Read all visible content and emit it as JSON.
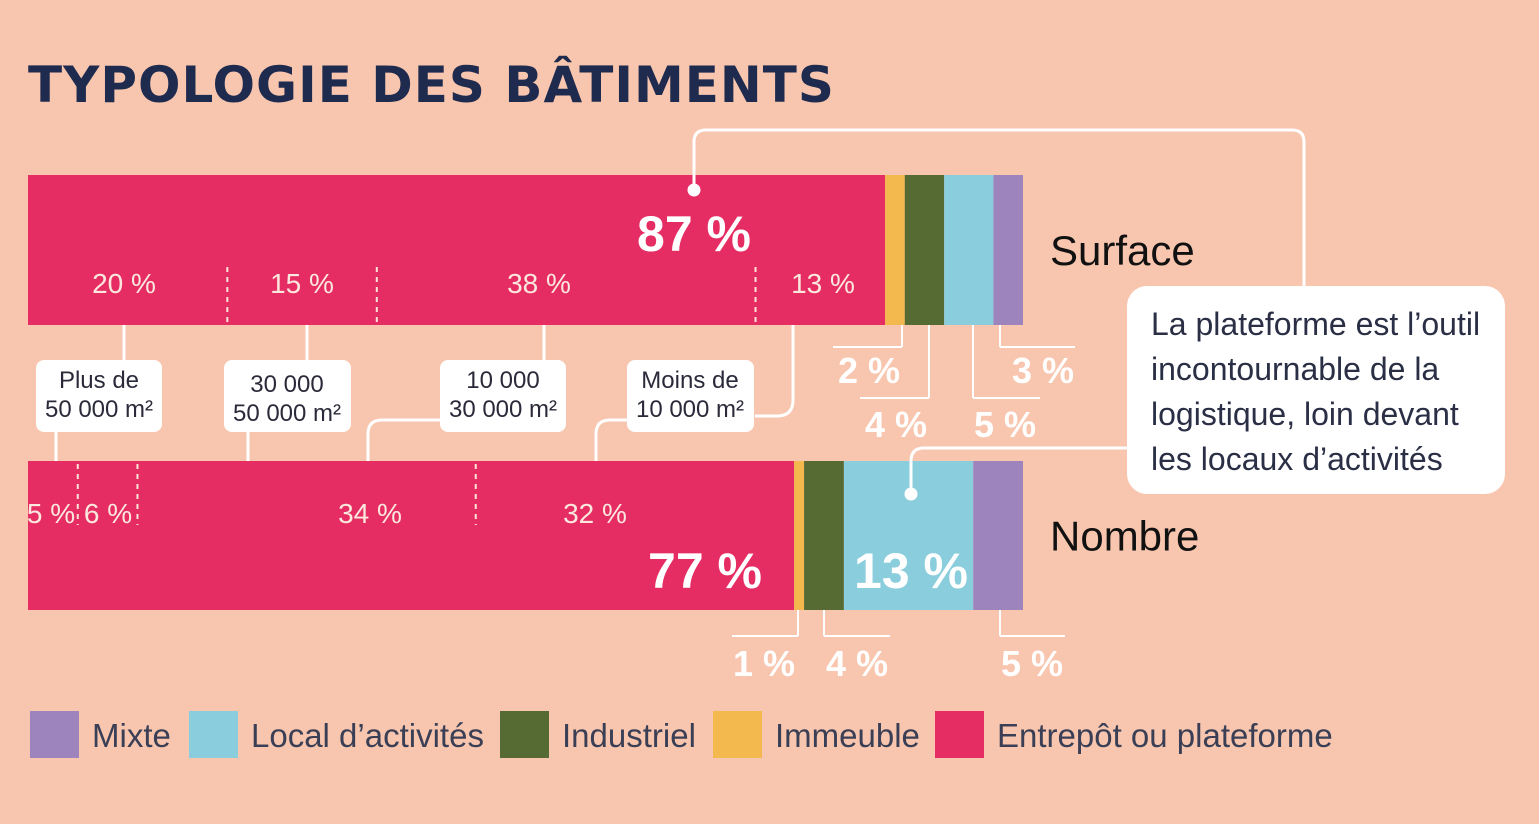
{
  "title": "TYPOLOGIE DES BÂTIMENTS",
  "colors": {
    "entrepot": "#e52d64",
    "immeuble": "#f3b84e",
    "industriel": "#566a33",
    "local": "#8acddd",
    "mixte": "#9d84bd",
    "background": "#f8c6ae"
  },
  "chart_data": {
    "type": "bar",
    "orientation": "horizontal-stacked",
    "title": "TYPOLOGIE DES BÂTIMENTS",
    "categories": [
      "Surface",
      "Nombre"
    ],
    "series": [
      {
        "name": "Entrepôt ou plateforme",
        "values": [
          87,
          77
        ],
        "labels": [
          "87 %",
          "77 %"
        ]
      },
      {
        "name": "Immeuble",
        "values": [
          2,
          1
        ],
        "labels": [
          "2 %",
          "1 %"
        ]
      },
      {
        "name": "Industriel",
        "values": [
          4,
          4
        ],
        "labels": [
          "4 %",
          "4 %"
        ]
      },
      {
        "name": "Local d’activités",
        "values": [
          5,
          13
        ],
        "labels": [
          "5 %",
          "13 %"
        ]
      },
      {
        "name": "Mixte",
        "values": [
          3,
          5
        ],
        "labels": [
          "3 %",
          "5 %"
        ]
      }
    ],
    "size_classes": {
      "names": [
        "Plus de 50 000 m²",
        "30 000 50 000 m²",
        "10 000 30 000 m²",
        "Moins de 10 000 m²"
      ],
      "box_lines": [
        [
          "Plus de",
          "50 000 m²"
        ],
        [
          "30 000",
          "50 000 m²"
        ],
        [
          "10 000",
          "30 000 m²"
        ],
        [
          "Moins de",
          "10 000 m²"
        ]
      ],
      "Surface": {
        "values": [
          20,
          15,
          38,
          13
        ],
        "labels": [
          "20 %",
          "15 %",
          "38 %",
          "13 %"
        ]
      },
      "Nombre": {
        "values": [
          5,
          6,
          34,
          32
        ],
        "labels": [
          "5 %",
          "6 %",
          "34 %",
          "32 %"
        ]
      }
    },
    "legend": [
      "Mixte",
      "Local d’activités",
      "Industriel",
      "Immeuble",
      "Entrepôt ou plateforme"
    ],
    "legend_position": "bottom"
  },
  "callout": {
    "lines": [
      "La plateforme est l’outil",
      "incontournable de la",
      "logistique, loin devant",
      "les locaux d’activités"
    ]
  }
}
